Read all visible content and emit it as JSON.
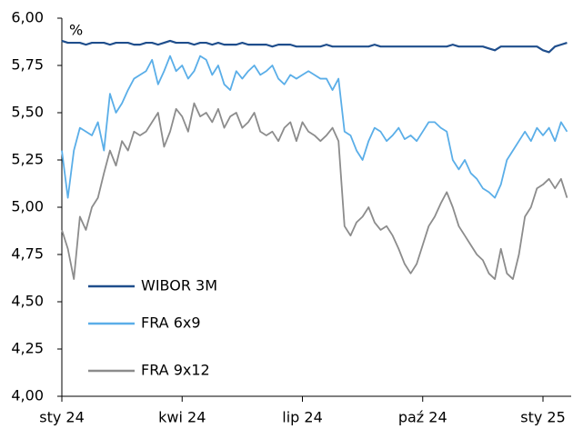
{
  "chart_data": {
    "type": "line",
    "annotation": "%",
    "categories": [
      "sty 24",
      null,
      null,
      null,
      null,
      null,
      null,
      null,
      null,
      null,
      null,
      null,
      null,
      null,
      null,
      null,
      null,
      null,
      null,
      null,
      "kwi 24",
      null,
      null,
      null,
      null,
      null,
      null,
      null,
      null,
      null,
      null,
      null,
      null,
      null,
      null,
      null,
      null,
      null,
      null,
      null,
      "lip 24",
      null,
      null,
      null,
      null,
      null,
      null,
      null,
      null,
      null,
      null,
      null,
      null,
      null,
      null,
      null,
      null,
      null,
      null,
      null,
      "paź 24",
      null,
      null,
      null,
      null,
      null,
      null,
      null,
      null,
      null,
      null,
      null,
      null,
      null,
      null,
      null,
      null,
      null,
      null,
      null,
      "sty 25",
      null,
      null,
      null,
      null
    ],
    "series": [
      {
        "name": "WIBOR 3M",
        "color": "#1f4e8c",
        "values": [
          5.88,
          5.87,
          5.87,
          5.87,
          5.86,
          5.87,
          5.87,
          5.87,
          5.86,
          5.87,
          5.87,
          5.87,
          5.86,
          5.86,
          5.87,
          5.87,
          5.86,
          5.87,
          5.88,
          5.87,
          5.87,
          5.87,
          5.86,
          5.87,
          5.87,
          5.86,
          5.87,
          5.86,
          5.86,
          5.86,
          5.87,
          5.86,
          5.86,
          5.86,
          5.86,
          5.85,
          5.86,
          5.86,
          5.86,
          5.85,
          5.85,
          5.85,
          5.85,
          5.85,
          5.86,
          5.85,
          5.85,
          5.85,
          5.85,
          5.85,
          5.85,
          5.85,
          5.86,
          5.85,
          5.85,
          5.85,
          5.85,
          5.85,
          5.85,
          5.85,
          5.85,
          5.85,
          5.85,
          5.85,
          5.85,
          5.86,
          5.85,
          5.85,
          5.85,
          5.85,
          5.85,
          5.84,
          5.83,
          5.85,
          5.85,
          5.85,
          5.85,
          5.85,
          5.85,
          5.85,
          5.83,
          5.82,
          5.85,
          5.86,
          5.87
        ]
      },
      {
        "name": "FRA 6x9",
        "color": "#5aaee8",
        "values": [
          5.3,
          5.05,
          5.3,
          5.42,
          5.4,
          5.38,
          5.45,
          5.3,
          5.6,
          5.5,
          5.55,
          5.62,
          5.68,
          5.7,
          5.72,
          5.78,
          5.65,
          5.72,
          5.8,
          5.72,
          5.75,
          5.68,
          5.72,
          5.8,
          5.78,
          5.7,
          5.75,
          5.65,
          5.62,
          5.72,
          5.68,
          5.72,
          5.75,
          5.7,
          5.72,
          5.75,
          5.68,
          5.65,
          5.7,
          5.68,
          5.7,
          5.72,
          5.7,
          5.68,
          5.68,
          5.62,
          5.68,
          5.4,
          5.38,
          5.3,
          5.25,
          5.35,
          5.42,
          5.4,
          5.35,
          5.38,
          5.42,
          5.36,
          5.38,
          5.35,
          5.4,
          5.45,
          5.45,
          5.42,
          5.4,
          5.25,
          5.2,
          5.25,
          5.18,
          5.15,
          5.1,
          5.08,
          5.05,
          5.12,
          5.25,
          5.3,
          5.35,
          5.4,
          5.35,
          5.42,
          5.38,
          5.42,
          5.35,
          5.45,
          5.4
        ]
      },
      {
        "name": "FRA 9x12",
        "color": "#8c8c8c",
        "values": [
          4.88,
          4.78,
          4.62,
          4.95,
          4.88,
          5.0,
          5.05,
          5.18,
          5.3,
          5.22,
          5.35,
          5.3,
          5.4,
          5.38,
          5.4,
          5.45,
          5.5,
          5.32,
          5.4,
          5.52,
          5.48,
          5.4,
          5.55,
          5.48,
          5.5,
          5.45,
          5.52,
          5.42,
          5.48,
          5.5,
          5.42,
          5.45,
          5.5,
          5.4,
          5.38,
          5.4,
          5.35,
          5.42,
          5.45,
          5.35,
          5.45,
          5.4,
          5.38,
          5.35,
          5.38,
          5.42,
          5.35,
          4.9,
          4.85,
          4.92,
          4.95,
          5.0,
          4.92,
          4.88,
          4.9,
          4.85,
          4.78,
          4.7,
          4.65,
          4.7,
          4.8,
          4.9,
          4.95,
          5.02,
          5.08,
          5.0,
          4.9,
          4.85,
          4.8,
          4.75,
          4.72,
          4.65,
          4.62,
          4.78,
          4.65,
          4.62,
          4.75,
          4.95,
          5.0,
          5.1,
          5.12,
          5.15,
          5.1,
          5.15,
          5.05
        ]
      }
    ],
    "ylim": [
      4,
      6
    ],
    "yticks": [
      {
        "value": 4,
        "label": "4,00"
      },
      {
        "value": 4.25,
        "label": "4,25"
      },
      {
        "value": 4.5,
        "label": "4,50"
      },
      {
        "value": 4.75,
        "label": "4,75"
      },
      {
        "value": 5,
        "label": "5,00"
      },
      {
        "value": 5.25,
        "label": "5,25"
      },
      {
        "value": 5.5,
        "label": "5,50"
      },
      {
        "value": 5.75,
        "label": "5,75"
      },
      {
        "value": 6,
        "label": "6,00"
      }
    ],
    "legend": "lower left",
    "grid": false
  }
}
